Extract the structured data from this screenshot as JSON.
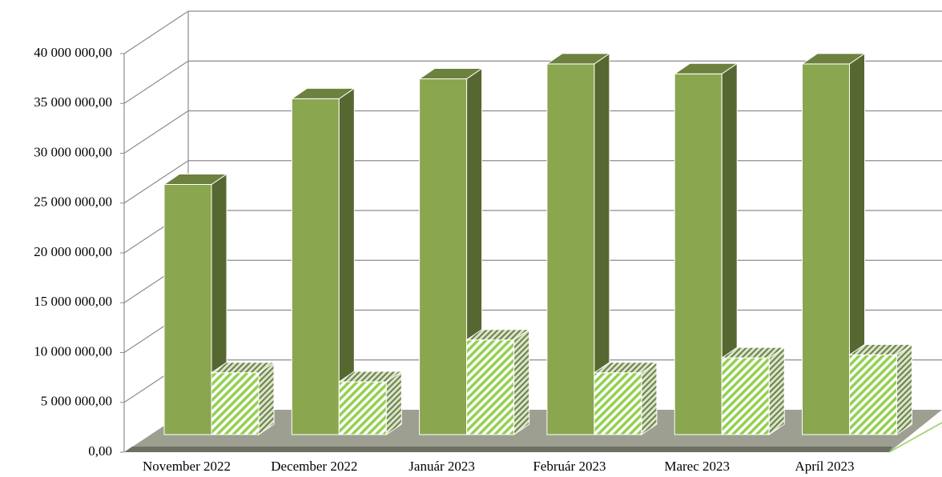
{
  "chart_data": {
    "type": "bar3d",
    "categories": [
      "November 2022",
      "December 2022",
      "Január 2023",
      "Február 2023",
      "Marec 2023",
      "Apríl 2023"
    ],
    "series": [
      {
        "color": "#8aa64f",
        "values": [
          25100000,
          33700000,
          35700000,
          37200000,
          36200000,
          37200000
        ]
      },
      {
        "color": "#92d050",
        "pattern": "hatch",
        "values": [
          6200000,
          5300000,
          9500000,
          6200000,
          7700000,
          8000000
        ]
      }
    ],
    "ylim": [
      0,
      40000000
    ],
    "yticks": [
      {
        "value": 0,
        "label": "0,00"
      },
      {
        "value": 5000000,
        "label": "5 000 000,00"
      },
      {
        "value": 10000000,
        "label": "10 000 000,00"
      },
      {
        "value": 15000000,
        "label": "15 000 000,00"
      },
      {
        "value": 20000000,
        "label": "20 000 000,00"
      },
      {
        "value": 25000000,
        "label": "25 000 000,00"
      },
      {
        "value": 30000000,
        "label": "30 000 000,00"
      },
      {
        "value": 35000000,
        "label": "35 000 000,00"
      },
      {
        "value": 40000000,
        "label": "40 000 000,00"
      }
    ],
    "grid": true
  }
}
